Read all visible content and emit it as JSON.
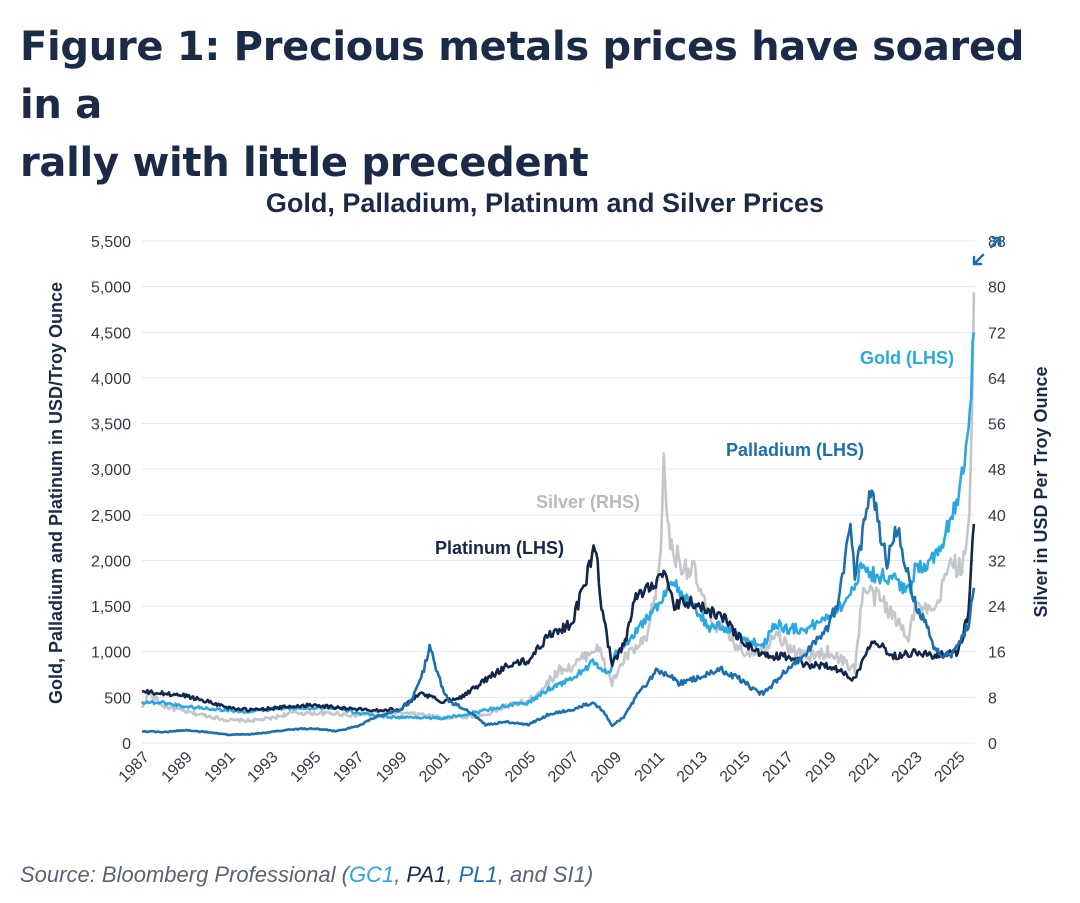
{
  "figure_title_line1": "Figure 1: Precious metals prices have soared in a",
  "figure_title_line2": "rally with little precedent",
  "chart_data": {
    "type": "line",
    "title": "Gold, Palladium, Platinum and Silver Prices",
    "ylabel_left": "Gold, Palladium and Platinum in USD/Troy Ounce",
    "ylabel_right": "Silver in USD Per Troy Ounce",
    "ylim_left": [
      0,
      5500
    ],
    "ylim_right": [
      0,
      88
    ],
    "xlim": [
      1987,
      2025.8
    ],
    "left_ticks": [
      "0",
      "500",
      "1,000",
      "1,500",
      "2,000",
      "2,500",
      "3,000",
      "3,500",
      "4,000",
      "4,500",
      "5,000",
      "5,500"
    ],
    "right_ticks": [
      "0",
      "8",
      "16",
      "24",
      "32",
      "40",
      "48",
      "56",
      "64",
      "72",
      "80",
      "88"
    ],
    "x_ticks": [
      "1987",
      "1989",
      "1991",
      "1993",
      "1995",
      "1997",
      "1999",
      "2001",
      "2003",
      "2005",
      "2007",
      "2009",
      "2011",
      "2013",
      "2015",
      "2017",
      "2019",
      "2021",
      "2023",
      "2025"
    ],
    "grid": true,
    "colors": {
      "gold": "#2aa9e0",
      "palladium": "#1b6fae",
      "platinum": "#14264a",
      "silver": "#c3c7cc",
      "grid": "#e3e6ea",
      "text": "#1b2a47"
    },
    "series": [
      {
        "name": "Silver (RHS)",
        "axis": "right",
        "key": "silver",
        "x": [
          1987,
          1987.3,
          1988,
          1989,
          1990,
          1991,
          1992,
          1993,
          1994,
          1995,
          1996,
          1997,
          1998,
          1999,
          2000,
          2001,
          2002,
          2003,
          2004,
          2004.5,
          2005,
          2006,
          2006.5,
          2007,
          2008.2,
          2008.9,
          2009.5,
          2010.5,
          2011.1,
          2011.3,
          2011.6,
          2012,
          2012.7,
          2013.4,
          2014,
          2015,
          2016,
          2016.5,
          2017,
          2018,
          2019,
          2020.2,
          2020.6,
          2021,
          2021.5,
          2022,
          2022.7,
          2023,
          2023.5,
          2024,
          2024.4,
          2024.8,
          2025,
          2025.4,
          2025.6,
          2025.75
        ],
        "values": [
          6,
          9,
          6.5,
          5.5,
          4.8,
          4,
          3.9,
          4.3,
          5.3,
          5.2,
          5.2,
          4.8,
          5.5,
          5.2,
          5,
          4.4,
          4.6,
          4.9,
          6.5,
          7,
          7.3,
          11,
          13,
          13.2,
          17,
          10.5,
          15,
          18,
          30,
          48,
          35,
          32,
          30,
          22,
          20,
          16,
          16.5,
          20,
          17,
          15,
          16,
          13,
          27,
          26,
          25,
          22,
          19,
          24,
          23,
          23,
          29,
          33,
          30,
          33,
          46,
          79
        ]
      },
      {
        "name": "Gold (LHS)",
        "axis": "left",
        "key": "gold",
        "x": [
          1987,
          1988,
          1989,
          1990,
          1991,
          1992,
          1993,
          1994,
          1995,
          1996,
          1997,
          1998,
          1999,
          2000,
          2001,
          2002,
          2003,
          2004,
          2005,
          2006,
          2007,
          2008,
          2008.8,
          2009,
          2010,
          2011,
          2011.7,
          2012,
          2013,
          2013.5,
          2014,
          2015,
          2015.9,
          2016.5,
          2017,
          2018,
          2019,
          2020,
          2020.6,
          2021,
          2022,
          2022.8,
          2023,
          2024,
          2024.5,
          2025,
          2025.5,
          2025.75
        ],
        "values": [
          450,
          440,
          400,
          380,
          360,
          340,
          370,
          385,
          385,
          390,
          330,
          295,
          280,
          280,
          270,
          310,
          360,
          410,
          440,
          600,
          700,
          880,
          750,
          950,
          1230,
          1500,
          1800,
          1650,
          1400,
          1250,
          1280,
          1150,
          1060,
          1320,
          1250,
          1250,
          1400,
          1600,
          2000,
          1850,
          1800,
          1650,
          1900,
          2050,
          2350,
          2700,
          3400,
          4500
        ]
      },
      {
        "name": "Platinum (LHS)",
        "axis": "left",
        "key": "platinum",
        "x": [
          1987,
          1988,
          1989,
          1990,
          1991,
          1992,
          1993,
          1994,
          1995,
          1996,
          1997,
          1998,
          1999,
          2000,
          2001,
          2002,
          2003,
          2004,
          2005,
          2006,
          2007,
          2007.7,
          2008.1,
          2008.4,
          2008.9,
          2009.5,
          2010,
          2011.3,
          2011.8,
          2012.5,
          2013.3,
          2014,
          2015,
          2016,
          2017,
          2018,
          2019,
          2020.2,
          2021,
          2021.5,
          2022,
          2023,
          2024,
          2025,
          2025.5,
          2025.75
        ],
        "values": [
          560,
          540,
          520,
          460,
          390,
          360,
          380,
          400,
          420,
          390,
          370,
          360,
          370,
          550,
          450,
          520,
          690,
          850,
          900,
          1200,
          1300,
          1800,
          2200,
          1500,
          850,
          1100,
          1600,
          1850,
          1500,
          1550,
          1450,
          1400,
          1100,
          950,
          950,
          850,
          850,
          700,
          1150,
          1050,
          950,
          1000,
          950,
          1000,
          1400,
          2400
        ]
      },
      {
        "name": "Palladium (LHS)",
        "axis": "left",
        "key": "palladium",
        "x": [
          1987,
          1988,
          1989,
          1990,
          1991,
          1992,
          1993,
          1994,
          1995,
          1996,
          1997,
          1998,
          1999,
          1999.5,
          2000,
          2000.4,
          2001,
          2001.3,
          2001.8,
          2002.5,
          2003,
          2004,
          2005,
          2006,
          2007,
          2008,
          2008.5,
          2008.9,
          2009.5,
          2010,
          2011,
          2011.5,
          2012,
          2013,
          2014,
          2015,
          2015.7,
          2016,
          2017,
          2018,
          2019,
          2019.5,
          2020,
          2020.2,
          2020.5,
          2021,
          2021.4,
          2021.7,
          2022.2,
          2022.6,
          2023,
          2023.5,
          2024,
          2024.7,
          2025,
          2025.5,
          2025.75
        ],
        "values": [
          130,
          120,
          140,
          120,
          90,
          95,
          120,
          150,
          160,
          130,
          180,
          300,
          360,
          450,
          700,
          1050,
          600,
          450,
          400,
          300,
          200,
          230,
          200,
          320,
          360,
          450,
          350,
          190,
          300,
          500,
          800,
          750,
          650,
          720,
          800,
          680,
          550,
          550,
          800,
          1000,
          1300,
          1600,
          2500,
          1800,
          2200,
          2800,
          2300,
          2000,
          2400,
          1900,
          1550,
          1300,
          1000,
          950,
          1100,
          1300,
          1700
        ]
      }
    ]
  },
  "series_labels": {
    "gold": "Gold (LHS)",
    "palladium": "Palladium (LHS)",
    "silver": "Silver (RHS)",
    "platinum": "Platinum (LHS)"
  },
  "source": {
    "prefix": "Source: Bloomberg Professional (",
    "gc1": "GC1",
    "sep1": ", ",
    "pa1": "PA1",
    "sep2": ", ",
    "pl1": "PL1",
    "tail": ", and SI1)"
  },
  "icons": {
    "expand": "expand-arrows-icon"
  }
}
